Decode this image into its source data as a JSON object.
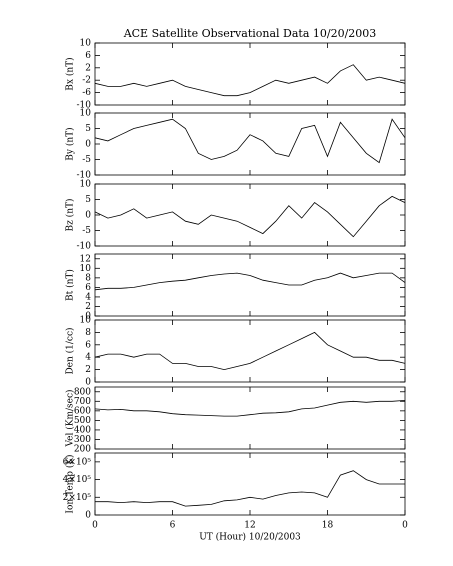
{
  "title": "ACE Satellite Observational Data   10/20/2003",
  "chart_data": [
    {
      "type": "line",
      "ylabel": "Bx (nT)",
      "ylim": [
        -10,
        10
      ],
      "yticks": [
        -10,
        -6,
        -2,
        2,
        6,
        10
      ],
      "x": [
        0,
        1,
        2,
        3,
        4,
        5,
        6,
        7,
        8,
        9,
        10,
        11,
        12,
        13,
        14,
        15,
        16,
        17,
        18,
        19,
        20,
        21,
        22,
        23,
        24
      ],
      "series": [
        {
          "color": "#000000",
          "values": [
            -3,
            -4,
            -4,
            -3,
            -4,
            -3,
            -2,
            -4,
            -5,
            -6,
            -7,
            -7,
            -6,
            -4,
            -2,
            -3,
            -2,
            -1,
            -3,
            1,
            3,
            -2,
            -1,
            -2,
            -3
          ]
        }
      ]
    },
    {
      "type": "line",
      "ylabel": "By (nT)",
      "ylim": [
        -10,
        10
      ],
      "yticks": [
        -10,
        -5,
        0,
        5,
        10
      ],
      "x": [
        0,
        1,
        2,
        3,
        4,
        5,
        6,
        7,
        8,
        9,
        10,
        11,
        12,
        13,
        14,
        15,
        16,
        17,
        18,
        19,
        20,
        21,
        22,
        23,
        24
      ],
      "series": [
        {
          "color": "#000000",
          "values": [
            2,
            1,
            3,
            5,
            6,
            7,
            8,
            5,
            -3,
            -5,
            -4,
            -2,
            3,
            1,
            -3,
            -4,
            5,
            6,
            -4,
            7,
            2,
            -3,
            -6,
            8,
            2
          ]
        }
      ]
    },
    {
      "type": "line",
      "ylabel": "Bz (nT)",
      "ylim": [
        -10,
        10
      ],
      "yticks": [
        -10,
        -5,
        0,
        5,
        10
      ],
      "x": [
        0,
        1,
        2,
        3,
        4,
        5,
        6,
        7,
        8,
        9,
        10,
        11,
        12,
        13,
        14,
        15,
        16,
        17,
        18,
        19,
        20,
        21,
        22,
        23,
        24
      ],
      "series": [
        {
          "color": "#000000",
          "values": [
            1,
            -1,
            0,
            2,
            -1,
            0,
            1,
            -2,
            -3,
            0,
            -1,
            -2,
            -4,
            -6,
            -2,
            3,
            -1,
            4,
            1,
            -3,
            -7,
            -2,
            3,
            6,
            4
          ]
        }
      ]
    },
    {
      "type": "line",
      "ylabel": "Bt (nT)",
      "ylim": [
        0,
        13
      ],
      "yticks": [
        0,
        2,
        4,
        6,
        8,
        10,
        12
      ],
      "x": [
        0,
        1,
        2,
        3,
        4,
        5,
        6,
        7,
        8,
        9,
        10,
        11,
        12,
        13,
        14,
        15,
        16,
        17,
        18,
        19,
        20,
        21,
        22,
        23,
        24
      ],
      "series": [
        {
          "color": "#000000",
          "values": [
            5.5,
            5.8,
            5.8,
            6,
            6.5,
            7,
            7.3,
            7.5,
            8,
            8.5,
            8.8,
            9,
            8.5,
            7.5,
            7,
            6.5,
            6.5,
            7.5,
            8,
            9,
            8,
            8.5,
            9,
            9,
            7
          ]
        }
      ]
    },
    {
      "type": "line",
      "ylabel": "Den (1/cc)",
      "ylim": [
        0,
        10
      ],
      "yticks": [
        0,
        2,
        4,
        6,
        8,
        10
      ],
      "x": [
        0,
        1,
        2,
        3,
        4,
        5,
        6,
        7,
        8,
        9,
        10,
        11,
        12,
        13,
        14,
        15,
        16,
        17,
        18,
        19,
        20,
        21,
        22,
        23,
        24
      ],
      "series": [
        {
          "color": "#000000",
          "values": [
            4,
            4.5,
            4.5,
            4,
            4.5,
            4.5,
            3,
            3,
            2.5,
            2.5,
            2,
            2.5,
            3,
            4,
            5,
            6,
            7,
            8,
            6,
            5,
            4,
            4,
            3.5,
            3.5,
            3
          ]
        }
      ]
    },
    {
      "type": "line",
      "ylabel": "Vel (Km/sec)",
      "ylim": [
        200,
        850
      ],
      "yticks": [
        200,
        300,
        400,
        500,
        600,
        700,
        800
      ],
      "x": [
        0,
        1,
        2,
        3,
        4,
        5,
        6,
        7,
        8,
        9,
        10,
        11,
        12,
        13,
        14,
        15,
        16,
        17,
        18,
        19,
        20,
        21,
        22,
        23,
        24
      ],
      "series": [
        {
          "color": "#000000",
          "values": [
            620,
            610,
            615,
            600,
            600,
            590,
            570,
            560,
            555,
            550,
            545,
            545,
            560,
            575,
            580,
            590,
            620,
            630,
            660,
            690,
            700,
            690,
            700,
            700,
            710
          ]
        }
      ]
    },
    {
      "type": "line",
      "ylabel": "Ion Temp (K)",
      "ylim": [
        0,
        700000
      ],
      "yticks": [
        0,
        {
          "value": 200000,
          "label": "2×10⁵"
        },
        {
          "value": 400000,
          "label": "4×10⁵"
        },
        {
          "value": 600000,
          "label": "6×10⁵"
        }
      ],
      "x": [
        0,
        1,
        2,
        3,
        4,
        5,
        6,
        7,
        8,
        9,
        10,
        11,
        12,
        13,
        14,
        15,
        16,
        17,
        18,
        19,
        20,
        21,
        22,
        23,
        24
      ],
      "series": [
        {
          "color": "#000000",
          "values": [
            150000,
            150000,
            140000,
            150000,
            140000,
            150000,
            150000,
            100000,
            110000,
            120000,
            160000,
            170000,
            200000,
            180000,
            220000,
            250000,
            260000,
            250000,
            200000,
            450000,
            500000,
            400000,
            350000,
            350000,
            350000
          ]
        }
      ],
      "xlabel": "UT (Hour)   10/20/2003",
      "xlim": [
        0,
        24
      ],
      "xticks": [
        0,
        6,
        12,
        18,
        {
          "value": 24,
          "label": "0"
        }
      ]
    }
  ]
}
